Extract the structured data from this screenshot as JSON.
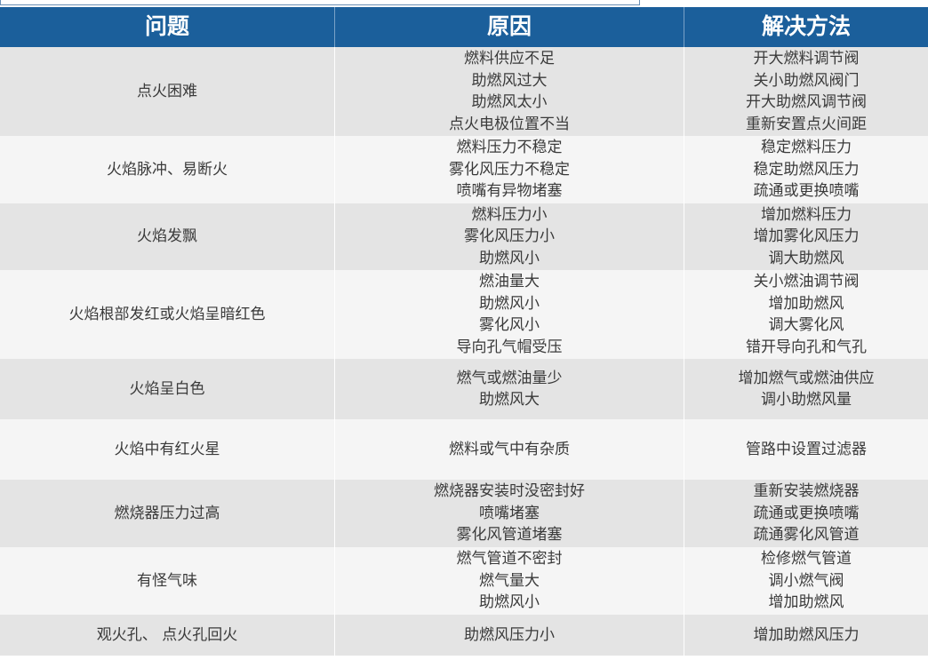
{
  "headers": [
    "问题",
    "原因",
    "解决方法"
  ],
  "rows": [
    {
      "problem": "点火困难",
      "causes": [
        "燃料供应不足",
        "助燃风过大",
        "助燃风太小",
        "点火电极位置不当"
      ],
      "solutions": [
        "开大燃料调节阀",
        "关小助燃风阀门",
        "开大助燃风调节阀",
        "重新安置点火间距"
      ]
    },
    {
      "problem": "火焰脉冲、易断火",
      "causes": [
        "燃料压力不稳定",
        "雾化风压力不稳定",
        "喷嘴有异物堵塞"
      ],
      "solutions": [
        "稳定燃料压力",
        "稳定助燃风压力",
        "疏通或更换喷嘴"
      ]
    },
    {
      "problem": "火焰发飘",
      "causes": [
        "燃料压力小",
        "雾化风压力小",
        "助燃风小"
      ],
      "solutions": [
        "增加燃料压力",
        "增加雾化风压力",
        "调大助燃风"
      ]
    },
    {
      "problem": "火焰根部发红或火焰呈暗红色",
      "causes": [
        "燃油量大",
        "助燃风小",
        "雾化风小",
        "导向孔气帽受压"
      ],
      "solutions": [
        "关小燃油调节阀",
        "增加助燃风",
        "调大雾化风",
        "错开导向孔和气孔"
      ]
    },
    {
      "problem": "火焰呈白色",
      "causes": [
        "燃气或燃油量少",
        "助燃风大"
      ],
      "solutions": [
        "增加燃气或燃油供应",
        "调小助燃风量"
      ]
    },
    {
      "problem": "火焰中有红火星",
      "causes": [
        "燃料或气中有杂质"
      ],
      "solutions": [
        "管路中设置过滤器"
      ]
    },
    {
      "problem": "燃烧器压力过高",
      "causes": [
        "燃烧器安装时没密封好",
        "喷嘴堵塞",
        "雾化风管道堵塞"
      ],
      "solutions": [
        "重新安装燃烧器",
        "疏通或更换喷嘴",
        "疏通雾化风管道"
      ]
    },
    {
      "problem": "有怪气味",
      "causes": [
        "燃气管道不密封",
        "燃气量大",
        "助燃风小"
      ],
      "solutions": [
        "检修燃气管道",
        "调小燃气阀",
        "增加助燃风"
      ]
    },
    {
      "problem": "观火孔、 点火孔回火",
      "causes": [
        "助燃风压力小"
      ],
      "solutions": [
        "增加助燃风压力"
      ]
    }
  ],
  "colors": {
    "header": "#1b5f9b",
    "row_gray": "#e4e4e4",
    "row_light": "#f5f5f5"
  }
}
